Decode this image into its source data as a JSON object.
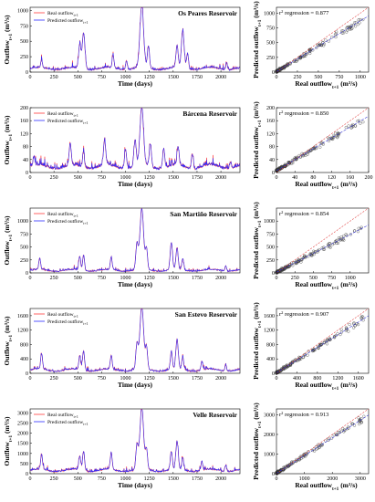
{
  "figure": {
    "time_series_xlabel": "Time (days)",
    "time_series_ylabel": "Outflow",
    "time_series_ylabel_sub": "t+1",
    "time_series_ylabel_unit": " (m³/s)",
    "legend_real": "Real outflow",
    "legend_pred": "Predicted outflow",
    "legend_sub": "t+1",
    "scatter_xlabel": "Real outflow",
    "scatter_ylabel": "Predicted outflow",
    "scatter_sub": "t+1",
    "scatter_unit": " (m³/s)",
    "r2_prefix": "r",
    "r2_suffix": " regression = ",
    "colors": {
      "real": "#ff3b3b",
      "predicted": "#2d2dff",
      "ideal_line": "#e04040",
      "fit_line": "#3a3ad6",
      "points": "#333333"
    }
  },
  "chart_data": [
    {
      "type": "line",
      "title": "Os Peares Reservoir",
      "xlabel": "Time (days)",
      "ylabel": "Outflow t+1 (m³/s)",
      "xlim": [
        0,
        2200
      ],
      "ylim": [
        0,
        1050
      ],
      "xticks": [
        0,
        250,
        500,
        750,
        1000,
        1250,
        1500,
        1750,
        2000
      ],
      "yticks": [
        0,
        250,
        500,
        750,
        1000
      ],
      "base": 70,
      "peaks": [
        [
          120,
          120
        ],
        [
          520,
          380
        ],
        [
          560,
          580
        ],
        [
          870,
          200
        ],
        [
          1010,
          150
        ],
        [
          1170,
          1000
        ],
        [
          1240,
          340
        ],
        [
          1540,
          360
        ],
        [
          1600,
          600
        ],
        [
          1650,
          260
        ],
        [
          2060,
          110
        ]
      ],
      "series": [
        {
          "name": "Real outflow t+1",
          "color": "#ff3b3b"
        },
        {
          "name": "Predicted outflow t+1",
          "color": "#2d2dff"
        }
      ],
      "scatter": {
        "type": "scatter",
        "xlabel": "Real outflow t+1 (m³/s)",
        "ylabel": "Predicted outflow t+1 (m³/s)",
        "lim": [
          0,
          1100
        ],
        "ticks": [
          0,
          250,
          500,
          750,
          1000
        ],
        "r2": "0.877",
        "fit_slope": 0.86,
        "fit_intercept": 8
      }
    },
    {
      "type": "line",
      "title": "Bárcena Reservoir",
      "xlabel": "Time (days)",
      "ylabel": "Outflow t+1 (m³/s)",
      "xlim": [
        0,
        2200
      ],
      "ylim": [
        0,
        200
      ],
      "xticks": [
        0,
        250,
        500,
        750,
        1000,
        1250,
        1500,
        1750,
        2000
      ],
      "yticks": [
        0,
        40,
        80,
        120,
        160,
        200
      ],
      "base": 22,
      "peaks": [
        [
          40,
          30
        ],
        [
          420,
          65
        ],
        [
          560,
          45
        ],
        [
          780,
          75
        ],
        [
          1000,
          60
        ],
        [
          1100,
          80
        ],
        [
          1170,
          180
        ],
        [
          1260,
          70
        ],
        [
          1400,
          60
        ],
        [
          1550,
          55
        ],
        [
          1700,
          45
        ],
        [
          2100,
          20
        ]
      ],
      "series": [
        {
          "name": "Real outflow t+1",
          "color": "#ff3b3b"
        },
        {
          "name": "Predicted outflow t+1",
          "color": "#2d2dff"
        }
      ],
      "scatter": {
        "type": "scatter",
        "xlabel": "Real outflow t+1 (m³/s)",
        "ylabel": "Predicted outflow t+1 (m³/s)",
        "lim": [
          0,
          200
        ],
        "ticks": [
          0,
          40,
          80,
          120,
          160,
          200
        ],
        "r2": "0.850",
        "fit_slope": 0.84,
        "fit_intercept": 6
      }
    },
    {
      "type": "line",
      "title": "San Martiño Reservoir",
      "xlabel": "Time (days)",
      "ylabel": "Outflow t+1 (m³/s)",
      "xlim": [
        0,
        2200
      ],
      "ylim": [
        0,
        1250
      ],
      "xticks": [
        0,
        250,
        500,
        750,
        1000,
        1250,
        1500,
        1750,
        2000
      ],
      "yticks": [
        0,
        250,
        500,
        750,
        1000
      ],
      "base": 60,
      "peaks": [
        [
          100,
          220
        ],
        [
          520,
          260
        ],
        [
          560,
          300
        ],
        [
          850,
          250
        ],
        [
          1120,
          500
        ],
        [
          1170,
          1180
        ],
        [
          1220,
          400
        ],
        [
          1480,
          520
        ],
        [
          1540,
          420
        ],
        [
          1600,
          220
        ],
        [
          2050,
          100
        ]
      ],
      "series": [
        {
          "name": "Real outflow t+1",
          "color": "#ff3b3b"
        },
        {
          "name": "Predicted outflow t+1",
          "color": "#2d2dff"
        }
      ],
      "scatter": {
        "type": "scatter",
        "xlabel": "Real outflow t+1 (m³/s)",
        "ylabel": "Predicted outflow t+1 (m³/s)",
        "lim": [
          0,
          1250
        ],
        "ticks": [
          0,
          250,
          500,
          750,
          1000
        ],
        "r2": "0.854",
        "fit_slope": 0.73,
        "fit_intercept": 12
      }
    },
    {
      "type": "line",
      "title": "San Estevo Reservoir",
      "xlabel": "Time (days)",
      "ylabel": "Outflow t+1 (m³/s)",
      "xlim": [
        0,
        2200
      ],
      "ylim": [
        0,
        1800
      ],
      "xticks": [
        0,
        250,
        500,
        750,
        1000,
        1250,
        1500,
        1750,
        2000
      ],
      "yticks": [
        0,
        400,
        800,
        1200,
        1600
      ],
      "base": 110,
      "peaks": [
        [
          120,
          420
        ],
        [
          520,
          380
        ],
        [
          560,
          520
        ],
        [
          850,
          380
        ],
        [
          1120,
          700
        ],
        [
          1170,
          1750
        ],
        [
          1220,
          600
        ],
        [
          1480,
          500
        ],
        [
          1540,
          820
        ],
        [
          1600,
          360
        ],
        [
          1800,
          250
        ],
        [
          2050,
          180
        ]
      ],
      "series": [
        {
          "name": "Real outflow t+1",
          "color": "#ff3b3b"
        },
        {
          "name": "Predicted outflow t+1",
          "color": "#2d2dff"
        }
      ],
      "scatter": {
        "type": "scatter",
        "xlabel": "Real outflow t+1 (m³/s)",
        "ylabel": "Predicted outflow t+1 (m³/s)",
        "lim": [
          0,
          1800
        ],
        "ticks": [
          0,
          400,
          800,
          1200,
          1600
        ],
        "r2": "0.907",
        "fit_slope": 0.88,
        "fit_intercept": 15
      }
    },
    {
      "type": "line",
      "title": "Velle Reservoir",
      "xlabel": "Time (days)",
      "ylabel": "Outflow t+1 (m³/s)",
      "xlim": [
        0,
        2200
      ],
      "ylim": [
        0,
        3200
      ],
      "xticks": [
        0,
        250,
        500,
        750,
        1000,
        1250,
        1500,
        1750,
        2000
      ],
      "yticks": [
        0,
        500,
        1000,
        1500,
        2000,
        2500,
        3000
      ],
      "base": 200,
      "peaks": [
        [
          120,
          700
        ],
        [
          520,
          700
        ],
        [
          560,
          950
        ],
        [
          850,
          800
        ],
        [
          1120,
          1200
        ],
        [
          1170,
          3050
        ],
        [
          1220,
          1000
        ],
        [
          1480,
          900
        ],
        [
          1540,
          1400
        ],
        [
          1600,
          600
        ],
        [
          1800,
          450
        ],
        [
          2050,
          300
        ]
      ],
      "series": [
        {
          "name": "Real outflow t+1",
          "color": "#ff3b3b"
        },
        {
          "name": "Predicted outflow t+1",
          "color": "#2d2dff"
        }
      ],
      "scatter": {
        "type": "scatter",
        "xlabel": "Real outflow t+1 (m³/s)",
        "ylabel": "Predicted outflow t+1 (m³/s)",
        "lim": [
          0,
          3300
        ],
        "ticks": [
          0,
          1000,
          2000,
          3000
        ],
        "r2": "0.913",
        "fit_slope": 0.9,
        "fit_intercept": 20
      }
    }
  ]
}
